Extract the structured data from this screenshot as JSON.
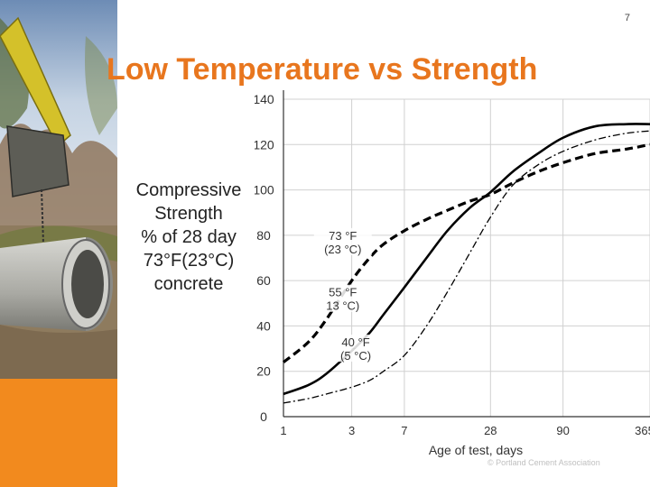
{
  "slide": {
    "number": "7",
    "title": "Low Temperature vs Strength",
    "ylabel_lines": [
      "Compressive",
      "Strength",
      "% of 28 day",
      "73°F(23°C)",
      "concrete"
    ]
  },
  "colors": {
    "title": "#e8761e",
    "orange_bar": "#f28a1e",
    "curve": "#000000"
  },
  "icons": {
    "photo": "excavator-pipe-photo"
  },
  "chart_data": {
    "type": "line",
    "title": "",
    "xlabel": "Age of test, days",
    "ylabel": "",
    "x_scale": "log",
    "x_ticks": [
      1,
      3,
      7,
      28,
      90,
      365
    ],
    "x_tick_labels": [
      "1",
      "3",
      "7",
      "28",
      "90",
      "365"
    ],
    "xlim": [
      1,
      365
    ],
    "y_ticks": [
      0,
      20,
      40,
      60,
      80,
      100,
      120,
      140
    ],
    "ylim": [
      0,
      140
    ],
    "grid": true,
    "series": [
      {
        "name": "73 °F (23 °C)",
        "style": "solid",
        "x": [
          1,
          1.5,
          2,
          3,
          4,
          5,
          7,
          10,
          14,
          20,
          28,
          40,
          60,
          90,
          150,
          250,
          365
        ],
        "y": [
          10,
          14,
          19,
          29,
          37,
          45,
          57,
          70,
          82,
          92,
          99,
          108,
          116,
          123,
          128,
          129,
          129
        ]
      },
      {
        "name": "55 °F (13 °C)",
        "style": "dashed",
        "x": [
          1,
          1.5,
          2,
          3,
          4,
          5,
          7,
          10,
          14,
          20,
          28,
          40,
          60,
          90,
          150,
          250,
          365
        ],
        "y": [
          24,
          33,
          43,
          60,
          70,
          76,
          82,
          87,
          91,
          95,
          98,
          103,
          108,
          112,
          116,
          118,
          120
        ]
      },
      {
        "name": "40 °F (5 °C)",
        "style": "dash-dot",
        "x": [
          1,
          1.5,
          2,
          3,
          4,
          5,
          7,
          10,
          14,
          20,
          28,
          40,
          60,
          90,
          150,
          250,
          365
        ],
        "y": [
          6,
          8,
          10,
          13,
          16,
          20,
          27,
          40,
          55,
          72,
          88,
          102,
          111,
          117,
          122,
          125,
          126
        ]
      }
    ],
    "annotations": [
      {
        "lines": [
          "73 °F",
          "(23 °C)"
        ],
        "x": 2.6,
        "y": 78
      },
      {
        "lines": [
          "55 °F",
          "13 °C)"
        ],
        "x": 2.6,
        "y": 53
      },
      {
        "lines": [
          "40 °F",
          "(5 °C)"
        ],
        "x": 3.2,
        "y": 31
      }
    ],
    "credit": "© Portland Cement Association"
  }
}
